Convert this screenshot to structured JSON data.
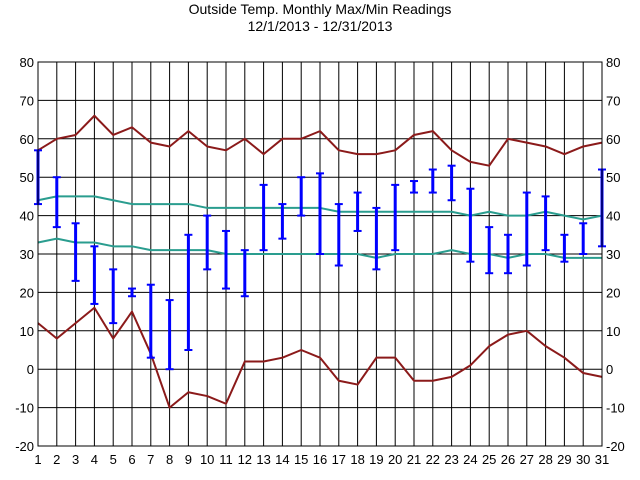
{
  "chart_data": {
    "type": "line",
    "title": "Outside Temp. Monthly Max/Min Readings",
    "subtitle": "12/1/2013 - 12/31/2013",
    "xlabel": "",
    "ylabel": "",
    "ylim": [
      -20,
      80
    ],
    "yticks": [
      -20,
      -10,
      0,
      10,
      20,
      30,
      40,
      50,
      60,
      70,
      80
    ],
    "x": [
      1,
      2,
      3,
      4,
      5,
      6,
      7,
      8,
      9,
      10,
      11,
      12,
      13,
      14,
      15,
      16,
      17,
      18,
      19,
      20,
      21,
      22,
      23,
      24,
      25,
      26,
      27,
      28,
      29,
      30,
      31
    ],
    "grid": true,
    "right_axis": true,
    "colors": {
      "record": "#8b1a1a",
      "normal": "#2a9d8f",
      "daily_range": "#0000ff",
      "grid": "#000000"
    },
    "series": [
      {
        "role": "record-high",
        "values": [
          57,
          60,
          61,
          66,
          61,
          63,
          59,
          58,
          62,
          58,
          57,
          60,
          56,
          60,
          60,
          62,
          57,
          56,
          56,
          57,
          61,
          62,
          57,
          54,
          53,
          60,
          59,
          58,
          56,
          58,
          59
        ]
      },
      {
        "role": "normal-high",
        "values": [
          44,
          45,
          45,
          45,
          44,
          43,
          43,
          43,
          43,
          42,
          42,
          42,
          42,
          42,
          42,
          42,
          41,
          41,
          41,
          41,
          41,
          41,
          41,
          40,
          41,
          40,
          40,
          41,
          40,
          39,
          40
        ]
      },
      {
        "role": "normal-low",
        "values": [
          33,
          34,
          33,
          33,
          32,
          32,
          31,
          31,
          31,
          31,
          30,
          30,
          30,
          30,
          30,
          30,
          30,
          30,
          29,
          30,
          30,
          30,
          31,
          30,
          30,
          29,
          30,
          30,
          29,
          29,
          29
        ]
      },
      {
        "role": "record-low",
        "values": [
          12,
          8,
          12,
          16,
          8,
          15,
          4,
          -10,
          -6,
          -7,
          -9,
          2,
          2,
          3,
          5,
          3,
          -3,
          -4,
          3,
          3,
          -3,
          -3,
          -2,
          1,
          6,
          9,
          10,
          6,
          3,
          -1,
          -2
        ]
      }
    ],
    "daily": {
      "max": [
        57,
        50,
        38,
        32,
        26,
        21,
        22,
        18,
        35,
        40,
        36,
        31,
        48,
        43,
        50,
        51,
        43,
        46,
        42,
        48,
        49,
        52,
        53,
        47,
        37,
        35,
        46,
        45,
        35,
        38,
        52
      ],
      "min": [
        43,
        37,
        23,
        17,
        12,
        19,
        3,
        0,
        5,
        26,
        21,
        19,
        31,
        34,
        40,
        30,
        27,
        36,
        26,
        31,
        46,
        46,
        44,
        28,
        25,
        25,
        27,
        31,
        28,
        30,
        32
      ]
    }
  }
}
